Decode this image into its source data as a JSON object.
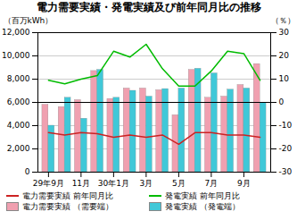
{
  "chart_data": {
    "type": "bar",
    "title": "電力需要実績・発電実績及び前年同月比の推移",
    "y_label": "（百万kWh）",
    "y2_label": "（％）",
    "categories": [
      "29年9月",
      null,
      "11月",
      null,
      "30年1月",
      null,
      "3月",
      null,
      "5月",
      null,
      "7月",
      null,
      "9月",
      null
    ],
    "series": [
      {
        "name": "電力需要実績\n（需要端）",
        "type": "bar",
        "color": "#f0a0b0",
        "values": [
          5800,
          5600,
          6200,
          8700,
          6300,
          7200,
          7200,
          7050,
          4900,
          8800,
          6400,
          6500,
          7500,
          9300
        ]
      },
      {
        "name": "発電実績\n（発電端）",
        "type": "bar",
        "color": "#40c8d8",
        "values": [
          4000,
          6400,
          4600,
          8800,
          6400,
          7000,
          6500,
          7150,
          7200,
          8900,
          8500,
          7100,
          7200,
          5950
        ]
      },
      {
        "name": "発電実績\n前年同月比",
        "type": "line",
        "axis": "y2",
        "color": "#00bb00",
        "values": [
          9.5,
          8.0,
          10.0,
          11.5,
          22.0,
          19.5,
          25.0,
          14.5,
          7.0,
          7.0,
          13.5,
          22.0,
          21.0,
          9.5
        ]
      },
      {
        "name": "電力需要実績\n前年同月比",
        "type": "line",
        "axis": "y2",
        "color": "#cc2222",
        "values": [
          -13.0,
          -14.0,
          -13.0,
          -13.5,
          -15.0,
          -14.0,
          -15.0,
          -14.0,
          -18.0,
          -13.0,
          -13.0,
          -14.0,
          -14.0,
          -15.0
        ]
      }
    ],
    "ylim": [
      0,
      12000
    ],
    "yticks": [
      0,
      {
        "value": 2000,
        "label": "2,000"
      },
      {
        "value": 4000,
        "label": "4,000"
      },
      {
        "value": 6000,
        "label": "6,000"
      },
      {
        "value": 8000,
        "label": "8,000"
      },
      {
        "value": 10000,
        "label": "10,000"
      },
      {
        "value": 12000,
        "label": "12,000"
      }
    ],
    "y2lim": [
      -30,
      30
    ],
    "y2ticks": [
      -30,
      -20,
      -10,
      0,
      10,
      20,
      30
    ],
    "baseline": 6000,
    "grid": true,
    "legend": "bottom"
  }
}
